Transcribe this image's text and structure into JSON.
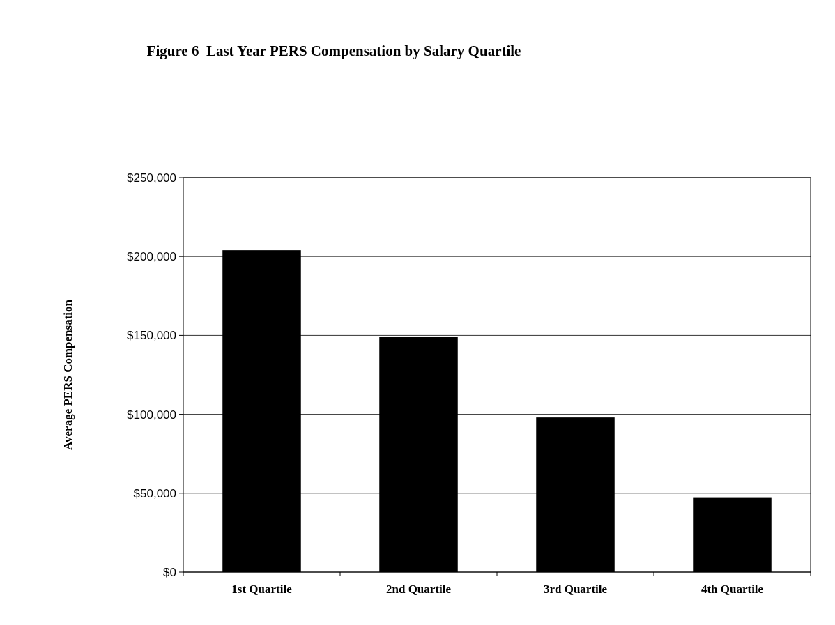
{
  "chart_data": {
    "type": "bar",
    "title": "Figure 6  Last Year PERS Compensation by Salary Quartile",
    "ylabel": "Average PERS Compensation",
    "categories": [
      "1st Quartile",
      "2nd Quartile",
      "3rd Quartile",
      "4th Quartile"
    ],
    "values": [
      204000,
      149000,
      98000,
      47000
    ],
    "color": "#000000",
    "ylim": [
      0,
      250000
    ],
    "yticks": [
      {
        "value": 0,
        "label": "$0"
      },
      {
        "value": 50000,
        "label": "$50,000"
      },
      {
        "value": 100000,
        "label": "$100,000"
      },
      {
        "value": 150000,
        "label": "$150,000"
      },
      {
        "value": 200000,
        "label": "$200,000"
      },
      {
        "value": 250000,
        "label": "$250,000"
      }
    ],
    "grid": "y"
  }
}
